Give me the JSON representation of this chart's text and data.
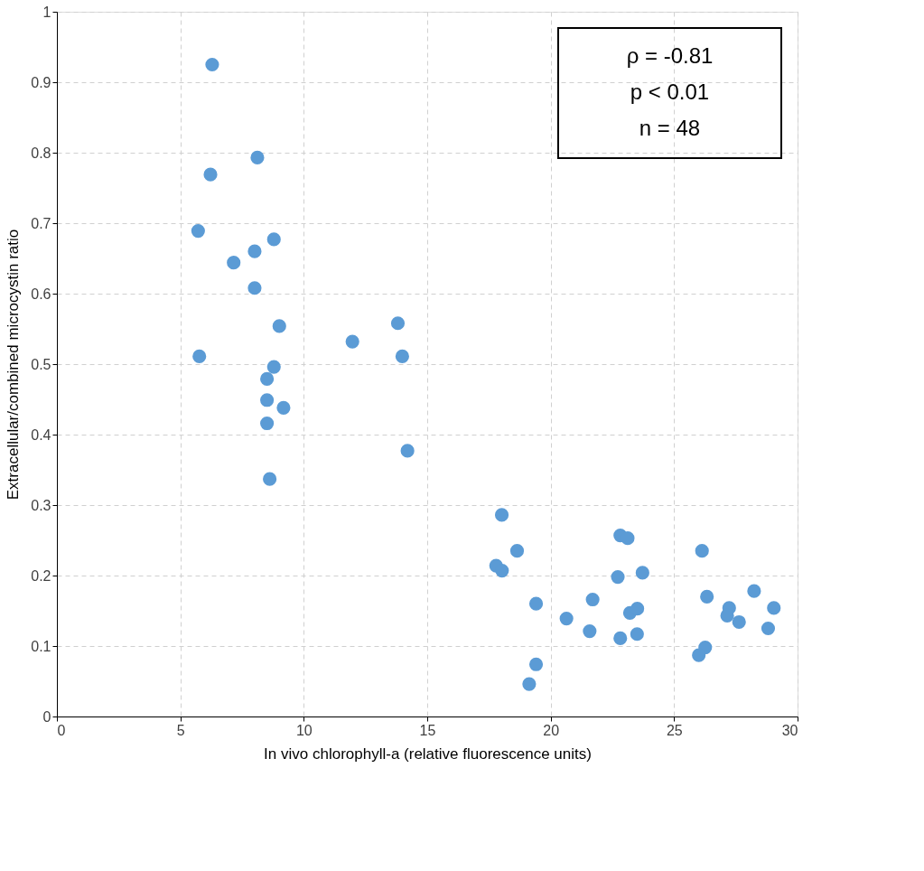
{
  "chart_data": {
    "type": "scatter",
    "xlabel": "In vivo chlorophyll-a (relative fluorescence units)",
    "ylabel": "Extracellular/combined microcystin ratio",
    "annotations": [
      "ρ = -0.81",
      "p < 0.01",
      "n = 48"
    ],
    "xlim": [
      0,
      30
    ],
    "xticks": [
      0,
      5,
      10,
      15,
      20,
      25,
      30
    ],
    "ylim": [
      0,
      1
    ],
    "yticks": [
      0,
      0.1,
      0.2,
      0.3,
      0.4,
      0.5,
      0.6,
      0.7,
      0.8,
      0.9,
      1
    ],
    "grid": true,
    "marker": "circle",
    "legend": false,
    "series": [
      {
        "color": "#5b9bd5",
        "x": [
          6.29,
          8.12,
          6.22,
          5.72,
          8.79,
          8.01,
          7.16,
          8.01,
          9.01,
          13.81,
          11.97,
          5.77,
          13.99,
          8.79,
          8.51,
          8.51,
          9.18,
          8.51,
          14.2,
          8.62,
          18.02,
          18.64,
          17.79,
          18.03,
          19.41,
          19.41,
          19.13,
          20.64,
          21.7,
          21.58,
          22.82,
          23.12,
          22.72,
          23.72,
          23.21,
          23.51,
          22.82,
          23.5,
          26.13,
          26.33,
          28.24,
          27.23,
          27.15,
          27.63,
          29.04,
          28.81,
          26.26,
          26.0
        ],
        "values": [
          0.925,
          0.793,
          0.769,
          0.689,
          0.677,
          0.66,
          0.644,
          0.608,
          0.554,
          0.558,
          0.532,
          0.511,
          0.511,
          0.496,
          0.479,
          0.449,
          0.438,
          0.416,
          0.377,
          0.337,
          0.286,
          0.235,
          0.214,
          0.207,
          0.16,
          0.074,
          0.046,
          0.139,
          0.166,
          0.121,
          0.257,
          0.253,
          0.198,
          0.204,
          0.147,
          0.153,
          0.111,
          0.117,
          0.235,
          0.17,
          0.178,
          0.154,
          0.143,
          0.134,
          0.154,
          0.125,
          0.098,
          0.087
        ]
      }
    ]
  }
}
